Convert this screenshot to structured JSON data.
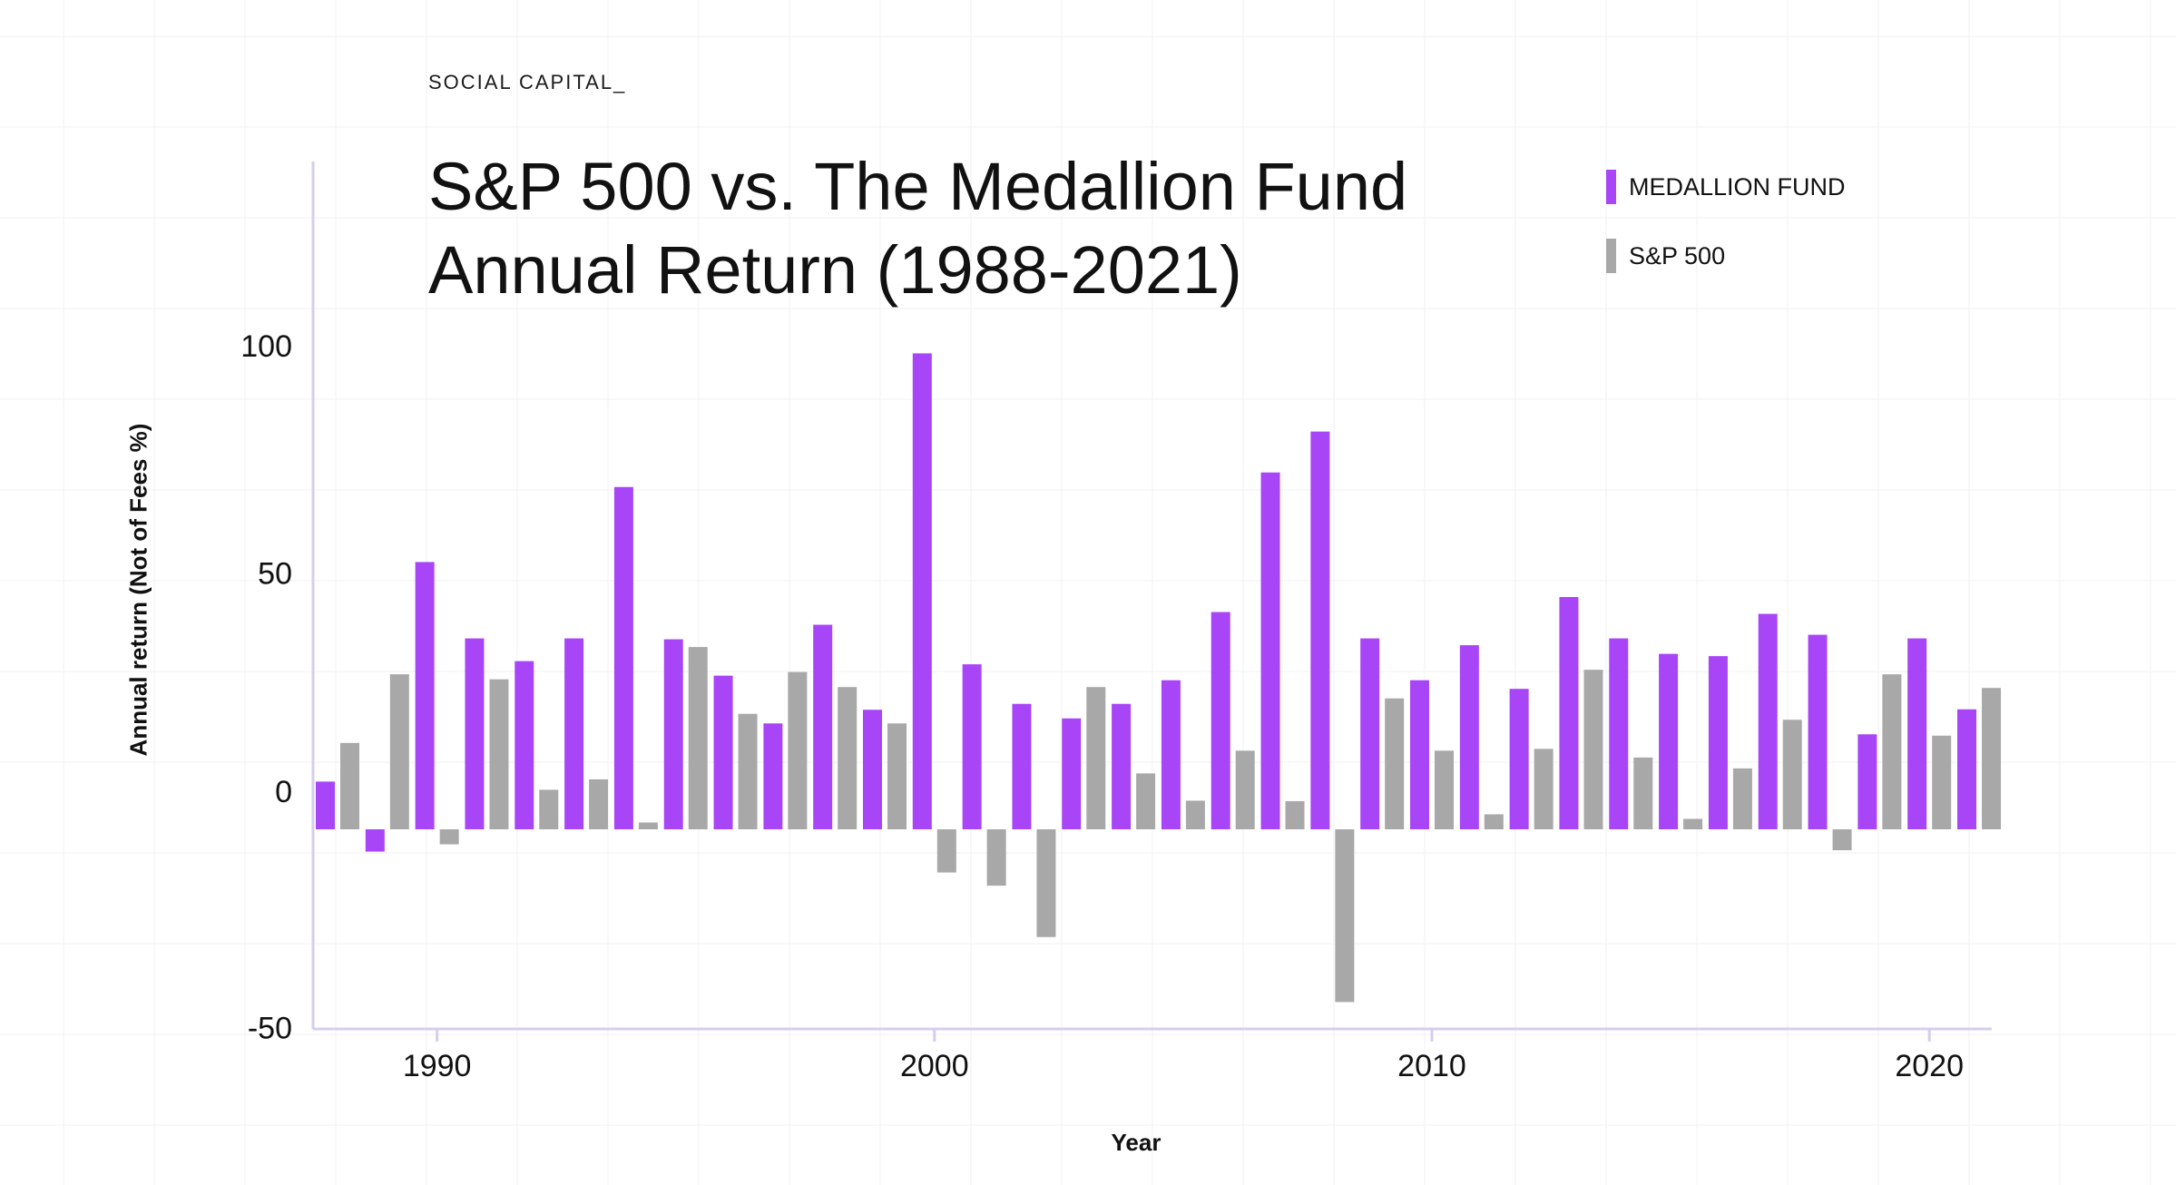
{
  "brand": "SOCIAL CAPITAL_",
  "colors": {
    "medallion": "#a845f7",
    "sp500": "#a8a8a8",
    "axis": "#d6cdee",
    "grid": "#f2f2f4"
  },
  "chart_data": {
    "type": "bar",
    "title_line1": "S&P 500 vs. The Medallion Fund",
    "title_line2": "Annual Return (1988-2021)",
    "xlabel": "Year",
    "ylabel": "Annual return (Not of Fees %)",
    "ylim": [
      -50,
      100
    ],
    "xlim": [
      1988,
      2021
    ],
    "yticks": [
      100,
      50,
      0,
      -50
    ],
    "xticks": [
      1990,
      2000,
      2010,
      2020
    ],
    "legend_position": "top-right",
    "grid": false,
    "categories": [
      1988,
      1989,
      1990,
      1991,
      1992,
      1993,
      1994,
      1995,
      1996,
      1997,
      1998,
      1999,
      2000,
      2001,
      2002,
      2003,
      2004,
      2005,
      2006,
      2007,
      2008,
      2009,
      2010,
      2011,
      2012,
      2013,
      2014,
      2015,
      2016,
      2017,
      2018,
      2019,
      2020,
      2021
    ],
    "series": [
      {
        "name": "MEDALLION FUND",
        "values": [
          10.5,
          -4.9,
          58.8,
          42.0,
          37.0,
          42.0,
          75.3,
          41.8,
          33.8,
          23.3,
          45.0,
          26.3,
          104.7,
          36.3,
          27.6,
          24.4,
          27.6,
          32.8,
          47.8,
          78.5,
          87.5,
          42.0,
          32.8,
          40.5,
          30.9,
          51.1,
          42.0,
          38.6,
          38.1,
          47.4,
          42.8,
          20.9,
          42.0,
          26.4
        ]
      },
      {
        "name": "S&P 500",
        "values": [
          19.0,
          34.1,
          -3.3,
          33.0,
          8.7,
          11.0,
          1.5,
          40.1,
          25.4,
          34.6,
          31.3,
          23.3,
          -9.5,
          -12.4,
          -23.7,
          31.3,
          12.3,
          6.3,
          17.3,
          6.2,
          -38.0,
          28.8,
          17.3,
          3.3,
          17.7,
          35.1,
          15.8,
          2.3,
          13.4,
          24.1,
          -4.6,
          34.1,
          20.6,
          31.1
        ]
      }
    ]
  }
}
